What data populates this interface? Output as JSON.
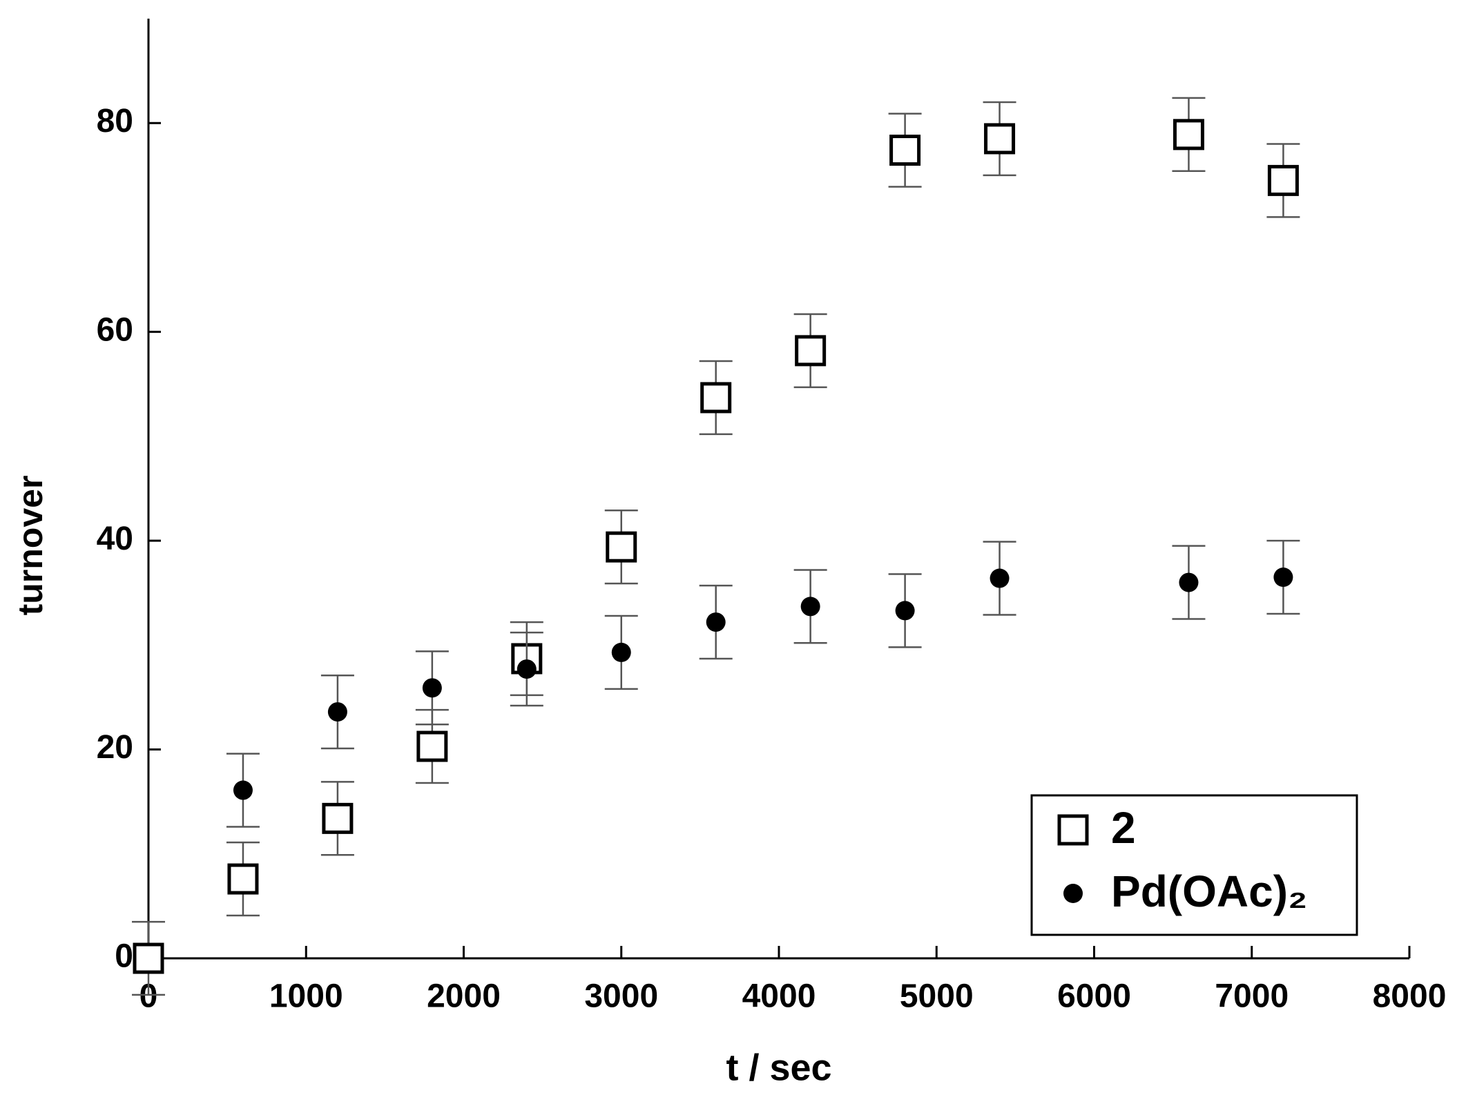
{
  "chart_data": {
    "type": "scatter",
    "xlabel": "t / sec",
    "ylabel": "turnover",
    "xlim": [
      0,
      8000
    ],
    "xticks": [
      0,
      1000,
      2000,
      3000,
      4000,
      5000,
      6000,
      7000,
      8000
    ],
    "ylim": [
      0,
      90
    ],
    "yticks": [
      0,
      20,
      40,
      60,
      80
    ],
    "legend": "lower right",
    "series": [
      {
        "name": "2",
        "marker": "square",
        "color": "#000000",
        "x": [
          0,
          600,
          1200,
          1800,
          2400,
          3000,
          3600,
          4200,
          4800,
          5400,
          6600,
          7200
        ],
        "values": [
          0,
          7.6,
          13.4,
          20.3,
          28.7,
          39.4,
          53.7,
          58.2,
          77.4,
          78.5,
          78.9,
          74.5
        ],
        "errors": [
          3.5,
          3.5,
          3.5,
          3.5,
          3.5,
          3.5,
          3.5,
          3.5,
          3.5,
          3.5,
          3.5,
          3.5
        ]
      },
      {
        "name": "Pd(OAc)₂",
        "marker": "circle",
        "color": "#000000",
        "x": [
          600,
          1200,
          1800,
          2400,
          3000,
          3600,
          4200,
          4800,
          5400,
          6600,
          7200
        ],
        "values": [
          16.1,
          23.6,
          25.9,
          27.7,
          29.3,
          32.2,
          33.7,
          33.3,
          36.4,
          36.0,
          36.5
        ],
        "errors": [
          3.5,
          3.5,
          3.5,
          3.5,
          3.5,
          3.5,
          3.5,
          3.5,
          3.5,
          3.5,
          3.5
        ]
      }
    ]
  }
}
